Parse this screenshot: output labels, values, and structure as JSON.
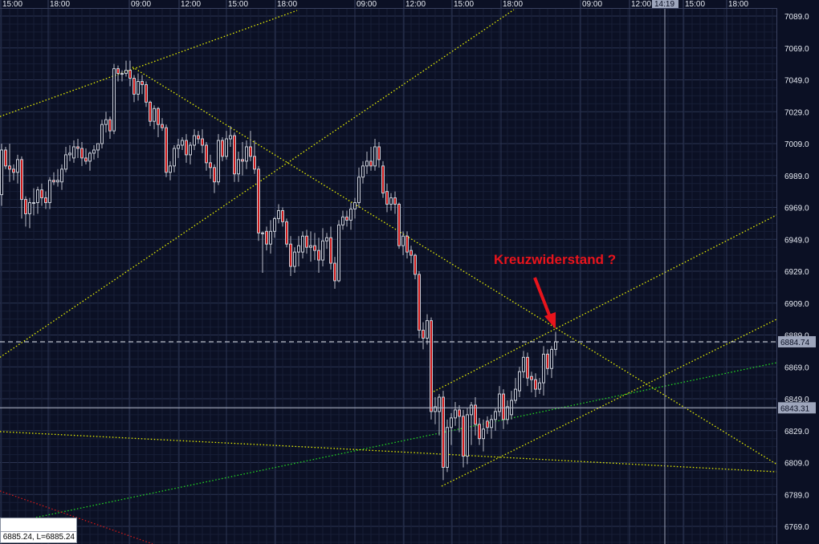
{
  "colors": {
    "background": "#0b1024",
    "up_candle_border": "#c8ccd6",
    "down_candle_fill": "#d01818",
    "trend_yellow": "#e8f000",
    "trend_green": "#22d822",
    "trend_red": "#d01818",
    "annotation": "#e8141c",
    "grid_major": "#2b3452",
    "grid_minor": "#171e36"
  },
  "time_axis": {
    "labels": [
      "15:00",
      "18:00",
      "09:00",
      "12:00",
      "15:00",
      "18:00",
      "09:00",
      "12:00",
      "15:00",
      "18:00",
      "09:00",
      "12:00",
      "15:00",
      "18:00"
    ],
    "cursor_time": "14:19"
  },
  "infobox": {
    "text": "6885.24, L=6885.24"
  },
  "chart_data": {
    "type": "candlestick",
    "title": "",
    "y_axis": {
      "ticks": [
        "7089.0",
        "7069.0",
        "7049.0",
        "7029.0",
        "7009.0",
        "6989.0",
        "6969.0",
        "6949.0",
        "6929.0",
        "6909.0",
        "6889.0",
        "6869.0",
        "6849.0",
        "6829.0",
        "6809.0",
        "6789.0",
        "6769.0"
      ],
      "ylim": [
        6769,
        7089
      ],
      "side": "right"
    },
    "grid": true,
    "markers": {
      "current_price": "6884.74",
      "cursor_price": "6843.31"
    },
    "annotation": {
      "text": "Kreuzwiderstand ?",
      "type": "arrow"
    },
    "ohlc": [
      [
        6977,
        7009,
        6970,
        7005
      ],
      [
        7005,
        7007,
        6993,
        6995
      ],
      [
        6995,
        7009,
        6985,
        6993
      ],
      [
        6993,
        6996,
        6986,
        6991
      ],
      [
        6991,
        7002,
        6984,
        6999
      ],
      [
        6999,
        7001,
        6962,
        6974
      ],
      [
        6974,
        6976,
        6957,
        6965
      ],
      [
        6965,
        6975,
        6956,
        6972
      ],
      [
        6972,
        6981,
        6964,
        6972
      ],
      [
        6972,
        6982,
        6965,
        6980
      ],
      [
        6980,
        6984,
        6970,
        6975
      ],
      [
        6975,
        6979,
        6968,
        6972
      ],
      [
        6972,
        6988,
        6968,
        6986
      ],
      [
        6986,
        6991,
        6983,
        6985
      ],
      [
        6985,
        6993,
        6982,
        6986
      ],
      [
        6985,
        6996,
        6980,
        6993
      ],
      [
        6993,
        7007,
        6991,
        7002
      ],
      [
        7002,
        7008,
        6998,
        7003
      ],
      [
        7000,
        7011,
        6997,
        7007
      ],
      [
        7007,
        7012,
        7000,
        7006
      ],
      [
        7006,
        7010,
        6995,
        7000
      ],
      [
        7000,
        7006,
        6996,
        6998
      ],
      [
        6998,
        7004,
        6992,
        7003
      ],
      [
        7003,
        7008,
        6999,
        7005
      ],
      [
        7005,
        7009,
        7000,
        7009
      ],
      [
        7009,
        7024,
        7006,
        7021
      ],
      [
        7021,
        7029,
        7016,
        7024
      ],
      [
        7024,
        7026,
        7012,
        7017
      ],
      [
        7017,
        7059,
        7015,
        7056
      ],
      [
        7056,
        7058,
        7048,
        7053
      ],
      [
        7053,
        7055,
        7048,
        7053
      ],
      [
        7053,
        7061,
        7051,
        7055
      ],
      [
        7055,
        7061,
        7045,
        7050
      ],
      [
        7050,
        7052,
        7035,
        7040
      ],
      [
        7040,
        7053,
        7036,
        7048
      ],
      [
        7048,
        7052,
        7040,
        7046
      ],
      [
        7046,
        7048,
        7032,
        7035
      ],
      [
        7035,
        7036,
        7020,
        7023
      ],
      [
        7023,
        7033,
        7018,
        7031
      ],
      [
        7031,
        7032,
        7013,
        7021
      ],
      [
        7021,
        7025,
        7017,
        7019
      ],
      [
        7019,
        7021,
        6988,
        6991
      ],
      [
        6991,
        6998,
        6986,
        6995
      ],
      [
        6995,
        7008,
        6991,
        7006
      ],
      [
        7006,
        7012,
        7000,
        7008
      ],
      [
        7008,
        7013,
        7005,
        7011
      ],
      [
        7011,
        7015,
        6997,
        7002
      ],
      [
        7002,
        7010,
        6996,
        7008
      ],
      [
        7008,
        7018,
        7005,
        7014
      ],
      [
        7014,
        7017,
        7009,
        7012
      ],
      [
        7012,
        7018,
        7003,
        7008
      ],
      [
        7008,
        7010,
        6992,
        6997
      ],
      [
        6997,
        7002,
        6987,
        6994
      ],
      [
        6994,
        6996,
        6978,
        6985
      ],
      [
        6985,
        7015,
        6983,
        7011
      ],
      [
        7011,
        7013,
        6998,
        7001
      ],
      [
        7001,
        7017,
        6999,
        7012
      ],
      [
        7012,
        7020,
        7007,
        7014
      ],
      [
        7014,
        7016,
        6985,
        6990
      ],
      [
        6990,
        7004,
        6985,
        6999
      ],
      [
        6999,
        7010,
        6989,
        6998
      ],
      [
        6998,
        7011,
        6993,
        7007
      ],
      [
        7007,
        7017,
        6998,
        7001
      ],
      [
        7001,
        7011,
        6990,
        6993
      ],
      [
        6993,
        6995,
        6948,
        6953
      ],
      [
        6953,
        6954,
        6928,
        6953
      ],
      [
        6954,
        6957,
        6942,
        6946
      ],
      [
        6946,
        6961,
        6940,
        6954
      ],
      [
        6954,
        6963,
        6950,
        6962
      ],
      [
        6962,
        6971,
        6959,
        6967
      ],
      [
        6967,
        6969,
        6957,
        6960
      ],
      [
        6960,
        6962,
        6944,
        6946
      ],
      [
        6946,
        6951,
        6926,
        6932
      ],
      [
        6932,
        6944,
        6928,
        6941
      ],
      [
        6941,
        6951,
        6932,
        6945
      ],
      [
        6941,
        6954,
        6937,
        6951
      ],
      [
        6951,
        6955,
        6940,
        6944
      ],
      [
        6944,
        6954,
        6935,
        6945
      ],
      [
        6945,
        6953,
        6936,
        6942
      ],
      [
        6942,
        6950,
        6928,
        6936
      ],
      [
        6936,
        6956,
        6932,
        6948
      ],
      [
        6948,
        6953,
        6943,
        6950
      ],
      [
        6950,
        6957,
        6930,
        6934
      ],
      [
        6934,
        6938,
        6918,
        6923
      ],
      [
        6923,
        6961,
        6922,
        6958
      ],
      [
        6958,
        6967,
        6955,
        6963
      ],
      [
        6963,
        6967,
        6957,
        6961
      ],
      [
        6961,
        6972,
        6955,
        6968
      ],
      [
        6968,
        6975,
        6962,
        6972
      ],
      [
        6972,
        6994,
        6969,
        6988
      ],
      [
        6988,
        6998,
        6984,
        6995
      ],
      [
        6995,
        7004,
        6990,
        6998
      ],
      [
        6998,
        7007,
        6992,
        6995
      ],
      [
        6995,
        7012,
        6992,
        7007
      ],
      [
        7007,
        7010,
        6994,
        6999
      ],
      [
        6995,
        6998,
        6975,
        6978
      ],
      [
        6979,
        6984,
        6966,
        6971
      ],
      [
        6971,
        6978,
        6967,
        6975
      ],
      [
        6975,
        6979,
        6965,
        6971
      ],
      [
        6971,
        6972,
        6943,
        6945
      ],
      [
        6945,
        6954,
        6939,
        6951
      ],
      [
        6951,
        6954,
        6937,
        6941
      ],
      [
        6942,
        6945,
        6934,
        6939
      ],
      [
        6939,
        6940,
        6924,
        6927
      ],
      [
        6927,
        6929,
        6887,
        6892
      ],
      [
        6892,
        6897,
        6880,
        6887
      ],
      [
        6887,
        6902,
        6883,
        6898
      ],
      [
        6898,
        6900,
        6836,
        6841
      ],
      [
        6841,
        6850,
        6833,
        6844
      ],
      [
        6841,
        6852,
        6826,
        6850
      ],
      [
        6850,
        6854,
        6798,
        6806
      ],
      [
        6806,
        6836,
        6803,
        6831
      ],
      [
        6831,
        6840,
        6820,
        6837
      ],
      [
        6837,
        6847,
        6832,
        6842
      ],
      [
        6842,
        6845,
        6828,
        6838
      ],
      [
        6838,
        6842,
        6806,
        6813
      ],
      [
        6813,
        6843,
        6808,
        6839
      ],
      [
        6839,
        6847,
        6820,
        6845
      ],
      [
        6845,
        6850,
        6826,
        6833
      ],
      [
        6833,
        6837,
        6820,
        6824
      ],
      [
        6824,
        6836,
        6816,
        6830
      ],
      [
        6835,
        6838,
        6827,
        6831
      ],
      [
        6831,
        6839,
        6824,
        6836
      ],
      [
        6836,
        6843,
        6829,
        6841
      ],
      [
        6841,
        6857,
        6838,
        6852
      ],
      [
        6852,
        6855,
        6830,
        6836
      ],
      [
        6836,
        6848,
        6833,
        6844
      ],
      [
        6839,
        6854,
        6836,
        6848
      ],
      [
        6848,
        6862,
        6846,
        6855
      ],
      [
        6854,
        6869,
        6850,
        6866
      ],
      [
        6866,
        6879,
        6862,
        6875
      ],
      [
        6875,
        6878,
        6857,
        6862
      ],
      [
        6863,
        6866,
        6853,
        6861
      ],
      [
        6861,
        6865,
        6850,
        6855
      ],
      [
        6855,
        6862,
        6852,
        6859
      ],
      [
        6859,
        6882,
        6851,
        6877
      ],
      [
        6877,
        6880,
        6864,
        6868
      ],
      [
        6868,
        6882,
        6862,
        6880
      ],
      [
        6880,
        6891,
        6876,
        6884.74
      ]
    ],
    "trendlines": [
      {
        "color": "yellow",
        "points": [
          [
            -0.4,
            7026
          ],
          [
            73.6,
            7092.5
          ]
        ]
      },
      {
        "color": "yellow",
        "points": [
          [
            32.6,
            7057
          ],
          [
            193,
            6808
          ]
        ]
      },
      {
        "color": "yellow",
        "points": [
          [
            -0.4,
            6875
          ],
          [
            127.6,
            7093
          ]
        ]
      },
      {
        "color": "yellow",
        "points": [
          [
            107.6,
            6853.5
          ],
          [
            193,
            6964.2
          ]
        ]
      },
      {
        "color": "yellow",
        "points": [
          [
            109.6,
            6794.2
          ],
          [
            193,
            6898.8
          ]
        ]
      },
      {
        "color": "green",
        "points": [
          [
            8.6,
            6774.6
          ],
          [
            193,
            6871.6
          ]
        ]
      },
      {
        "color": "yellow",
        "points": [
          [
            -0.4,
            6828.4
          ],
          [
            79.6,
            6818.3
          ],
          [
            139.6,
            6810.3
          ],
          [
            193,
            6803.2
          ]
        ]
      },
      {
        "color": "red",
        "points": [
          [
            -0.4,
            6791.2
          ],
          [
            37.6,
            6758
          ]
        ]
      }
    ]
  }
}
